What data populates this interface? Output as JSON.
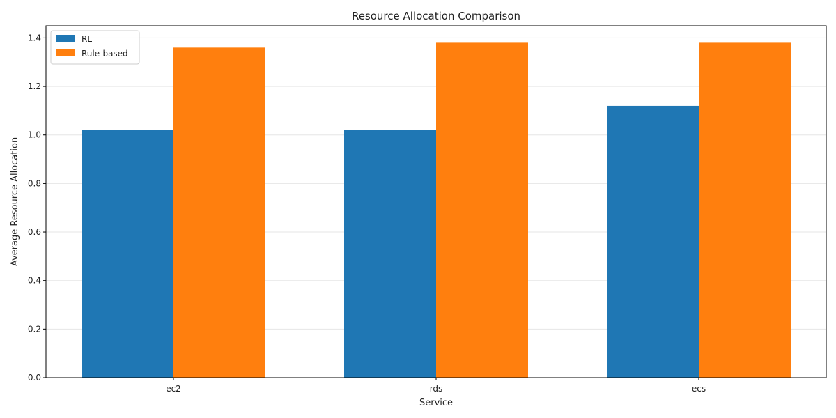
{
  "chart_data": {
    "type": "bar",
    "title": "Resource Allocation Comparison",
    "xlabel": "Service",
    "ylabel": "Average Resource Allocation",
    "categories": [
      "ec2",
      "rds",
      "ecs"
    ],
    "series": [
      {
        "name": "RL",
        "values": [
          1.02,
          1.02,
          1.12
        ],
        "color": "#1f77b4"
      },
      {
        "name": "Rule-based",
        "values": [
          1.36,
          1.38,
          1.38
        ],
        "color": "#ff7f0e"
      }
    ],
    "ylim": [
      0,
      1.45
    ],
    "yticks": [
      "0.0",
      "0.2",
      "0.4",
      "0.6",
      "0.8",
      "1.0",
      "1.2",
      "1.4"
    ],
    "grid": "horizontal",
    "legend_position": "top-left"
  }
}
